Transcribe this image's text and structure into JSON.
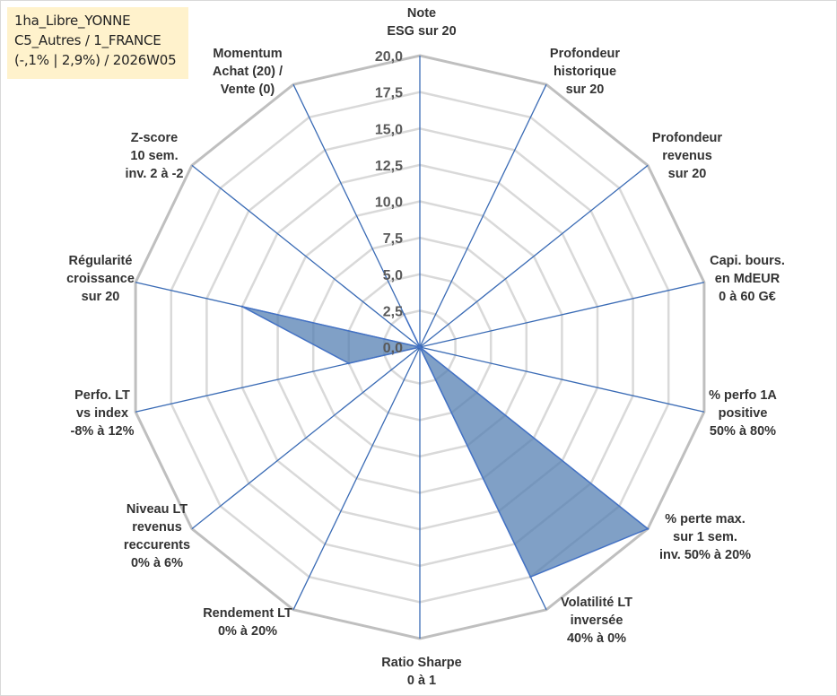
{
  "info_box": {
    "line1": "1ha_Libre_YONNE",
    "line2": "C5_Autres / 1_FRANCE",
    "line3": "(-,1% | 2,9%) / 2026W05"
  },
  "chart_data": {
    "type": "radar",
    "title": "",
    "rmin": 0,
    "rmax": 20,
    "rings": [
      2.5,
      5,
      7.5,
      10,
      12.5,
      15,
      17.5,
      20
    ],
    "tick_labels": [
      "0,0",
      "2,5",
      "5,0",
      "7,5",
      "10,0",
      "12,5",
      "15,0",
      "17,5",
      "20,0"
    ],
    "grid": true,
    "colors": {
      "fill": "#4f7bb0",
      "stroke": "#4472c4",
      "axis": "#3a6bb5",
      "ring_outer": "#bfbfbf",
      "ring_inner": "#d9d9d9"
    },
    "categories": [
      [
        "Note",
        "ESG sur 20"
      ],
      [
        "Profondeur",
        "historique",
        "sur 20"
      ],
      [
        "Profondeur",
        "revenus",
        "sur 20"
      ],
      [
        "Capi. bours.",
        "en MdEUR",
        "0 à 60 G€"
      ],
      [
        "% perfo 1A",
        "positive",
        "50% à 80%"
      ],
      [
        "% perte max.",
        "sur 1 sem.",
        "inv. 50% à 20%"
      ],
      [
        "Volatilité LT",
        "inversée",
        "40% à 0%"
      ],
      [
        "Ratio Sharpe",
        "0 à 1"
      ],
      [
        "Rendement LT",
        "0% à 20%"
      ],
      [
        "Niveau LT",
        "revenus",
        "reccurents",
        "0% à 6%"
      ],
      [
        "Perfo. LT",
        "vs index",
        "-8% à 12%"
      ],
      [
        "Régularité",
        "croissance",
        "sur 20"
      ],
      [
        "Z-score",
        "10 sem.",
        "inv. 2 à -2"
      ],
      [
        "Momentum",
        "Achat (20) /",
        "Vente (0)"
      ]
    ],
    "series": [
      {
        "values": [
          0,
          0,
          0,
          0,
          0,
          20,
          17.5,
          0,
          0,
          0,
          5,
          12.5,
          0,
          2.5
        ]
      }
    ]
  }
}
